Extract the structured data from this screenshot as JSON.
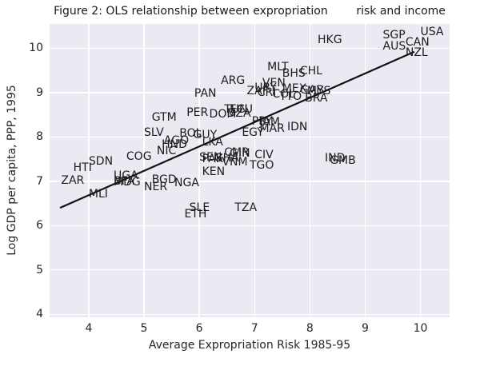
{
  "figure": {
    "title": "Figure 2: OLS relationship between expropriation        risk and income"
  },
  "colors": {
    "plot_background": "#eaeaf2",
    "gridline": "#ffffff",
    "text": "#262626",
    "country_label": "#1c1c1c",
    "trendline": "#111111",
    "page_background": "#ffffff"
  },
  "chart_data": {
    "type": "scatter",
    "title": "Figure 2: OLS relationship between expropriation        risk and income",
    "xlabel": "Average Expropriation Risk 1985-95",
    "ylabel": "Log GDP per capita, PPP, 1995",
    "xlim": [
      3.292,
      10.528
    ],
    "ylim": [
      3.933,
      10.547
    ],
    "xticks": [
      4,
      5,
      6,
      7,
      8,
      9,
      10
    ],
    "yticks": [
      4,
      5,
      6,
      7,
      8,
      9,
      10
    ],
    "grid": true,
    "legend": false,
    "marker_style": "country-code-text",
    "points": [
      {
        "label": "AGO",
        "x": 5.36,
        "y": 7.77
      },
      {
        "label": "ARG",
        "x": 6.39,
        "y": 9.13
      },
      {
        "label": "AUS",
        "x": 9.32,
        "y": 9.9
      },
      {
        "label": "BFA",
        "x": 4.45,
        "y": 6.85
      },
      {
        "label": "BGD",
        "x": 5.14,
        "y": 6.88
      },
      {
        "label": "BHS",
        "x": 7.5,
        "y": 9.29
      },
      {
        "label": "BOL",
        "x": 5.64,
        "y": 7.93
      },
      {
        "label": "BRA",
        "x": 7.91,
        "y": 8.73
      },
      {
        "label": "CAN",
        "x": 9.73,
        "y": 9.99
      },
      {
        "label": "CHL",
        "x": 7.82,
        "y": 9.34
      },
      {
        "label": "CIV",
        "x": 7.0,
        "y": 7.44
      },
      {
        "label": "CMR",
        "x": 6.45,
        "y": 7.5
      },
      {
        "label": "COG",
        "x": 4.68,
        "y": 7.42
      },
      {
        "label": "COL",
        "x": 7.32,
        "y": 8.81
      },
      {
        "label": "CRI",
        "x": 7.05,
        "y": 8.86
      },
      {
        "label": "DOM",
        "x": 6.18,
        "y": 8.36
      },
      {
        "label": "DZA",
        "x": 6.5,
        "y": 8.39
      },
      {
        "label": "ECU",
        "x": 6.55,
        "y": 8.47
      },
      {
        "label": "EGY",
        "x": 6.77,
        "y": 7.95
      },
      {
        "label": "ETH",
        "x": 5.73,
        "y": 6.11
      },
      {
        "label": "GAB",
        "x": 7.82,
        "y": 8.9
      },
      {
        "label": "GHA",
        "x": 6.27,
        "y": 7.37
      },
      {
        "label": "GIN",
        "x": 6.55,
        "y": 7.49
      },
      {
        "label": "GMB",
        "x": 8.36,
        "y": 7.32
      },
      {
        "label": "GTM",
        "x": 5.14,
        "y": 8.29
      },
      {
        "label": "GUY",
        "x": 5.89,
        "y": 7.9
      },
      {
        "label": "HKG",
        "x": 8.14,
        "y": 10.05
      },
      {
        "label": "HND",
        "x": 5.32,
        "y": 7.69
      },
      {
        "label": "HTI",
        "x": 3.72,
        "y": 7.15
      },
      {
        "label": "IDN",
        "x": 7.59,
        "y": 8.07
      },
      {
        "label": "IND",
        "x": 8.27,
        "y": 7.38
      },
      {
        "label": "JAM",
        "x": 7.09,
        "y": 8.19
      },
      {
        "label": "KEN",
        "x": 6.05,
        "y": 7.06
      },
      {
        "label": "LKA",
        "x": 6.05,
        "y": 7.73
      },
      {
        "label": "MAR",
        "x": 7.09,
        "y": 8.04
      },
      {
        "label": "MDG",
        "x": 4.45,
        "y": 6.84
      },
      {
        "label": "MEX",
        "x": 7.5,
        "y": 8.94
      },
      {
        "label": "MLI",
        "x": 4.0,
        "y": 6.57
      },
      {
        "label": "MLT",
        "x": 7.23,
        "y": 9.43
      },
      {
        "label": "MYS",
        "x": 7.95,
        "y": 8.89
      },
      {
        "label": "NER",
        "x": 5.0,
        "y": 6.73
      },
      {
        "label": "NGA",
        "x": 5.55,
        "y": 6.81
      },
      {
        "label": "NIC",
        "x": 5.23,
        "y": 7.54
      },
      {
        "label": "NZL",
        "x": 9.73,
        "y": 9.76
      },
      {
        "label": "PAK",
        "x": 6.05,
        "y": 7.35
      },
      {
        "label": "PAN",
        "x": 5.91,
        "y": 8.84
      },
      {
        "label": "PER",
        "x": 5.77,
        "y": 8.4
      },
      {
        "label": "PRY",
        "x": 6.95,
        "y": 8.21
      },
      {
        "label": "SDN",
        "x": 4.0,
        "y": 7.31
      },
      {
        "label": "SEN",
        "x": 6.0,
        "y": 7.4
      },
      {
        "label": "SGP",
        "x": 9.32,
        "y": 10.15
      },
      {
        "label": "SLE",
        "x": 5.82,
        "y": 6.25
      },
      {
        "label": "SLV",
        "x": 5.0,
        "y": 7.95
      },
      {
        "label": "TGO",
        "x": 6.91,
        "y": 7.22
      },
      {
        "label": "TTO",
        "x": 7.45,
        "y": 8.77
      },
      {
        "label": "TUN",
        "x": 6.45,
        "y": 8.48
      },
      {
        "label": "TZA",
        "x": 6.64,
        "y": 6.25
      },
      {
        "label": "UGA",
        "x": 4.45,
        "y": 6.97
      },
      {
        "label": "URY",
        "x": 7.0,
        "y": 8.97
      },
      {
        "label": "USA",
        "x": 10.0,
        "y": 10.22
      },
      {
        "label": "VEN",
        "x": 7.14,
        "y": 9.07
      },
      {
        "label": "VNM",
        "x": 6.41,
        "y": 7.28
      },
      {
        "label": "ZAF",
        "x": 6.86,
        "y": 8.89
      },
      {
        "label": "ZAR",
        "x": 3.5,
        "y": 6.87
      }
    ],
    "trendline": {
      "type": "ols",
      "slope": 0.55,
      "intercept": 4.49,
      "x_start": 3.48,
      "y_start": 6.4,
      "x_end": 9.89,
      "y_end": 9.92
    }
  }
}
